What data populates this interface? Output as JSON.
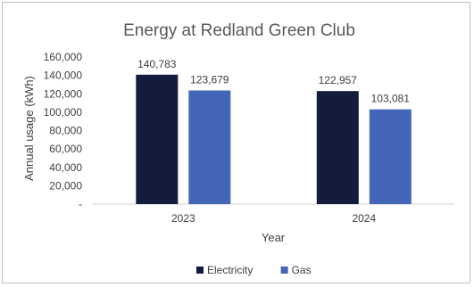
{
  "chart_data": {
    "type": "bar",
    "title": "Energy at Redland Green Club",
    "xlabel": "Year",
    "ylabel": "Annual usage (kWh)",
    "categories": [
      "2023",
      "2024"
    ],
    "series": [
      {
        "name": "Electricity",
        "values": [
          140783,
          122957
        ],
        "labels": [
          "140,783",
          "122,957"
        ],
        "color": "#141c3d"
      },
      {
        "name": "Gas",
        "values": [
          123679,
          103081
        ],
        "labels": [
          "123,679",
          "103,081"
        ],
        "color": "#4466b8"
      }
    ],
    "ylim": [
      0,
      160000
    ],
    "yticks": [
      "-",
      "20,000",
      "40,000",
      "60,000",
      "80,000",
      "100,000",
      "120,000",
      "140,000",
      "160,000"
    ],
    "grid": false,
    "legend_position": "bottom"
  }
}
